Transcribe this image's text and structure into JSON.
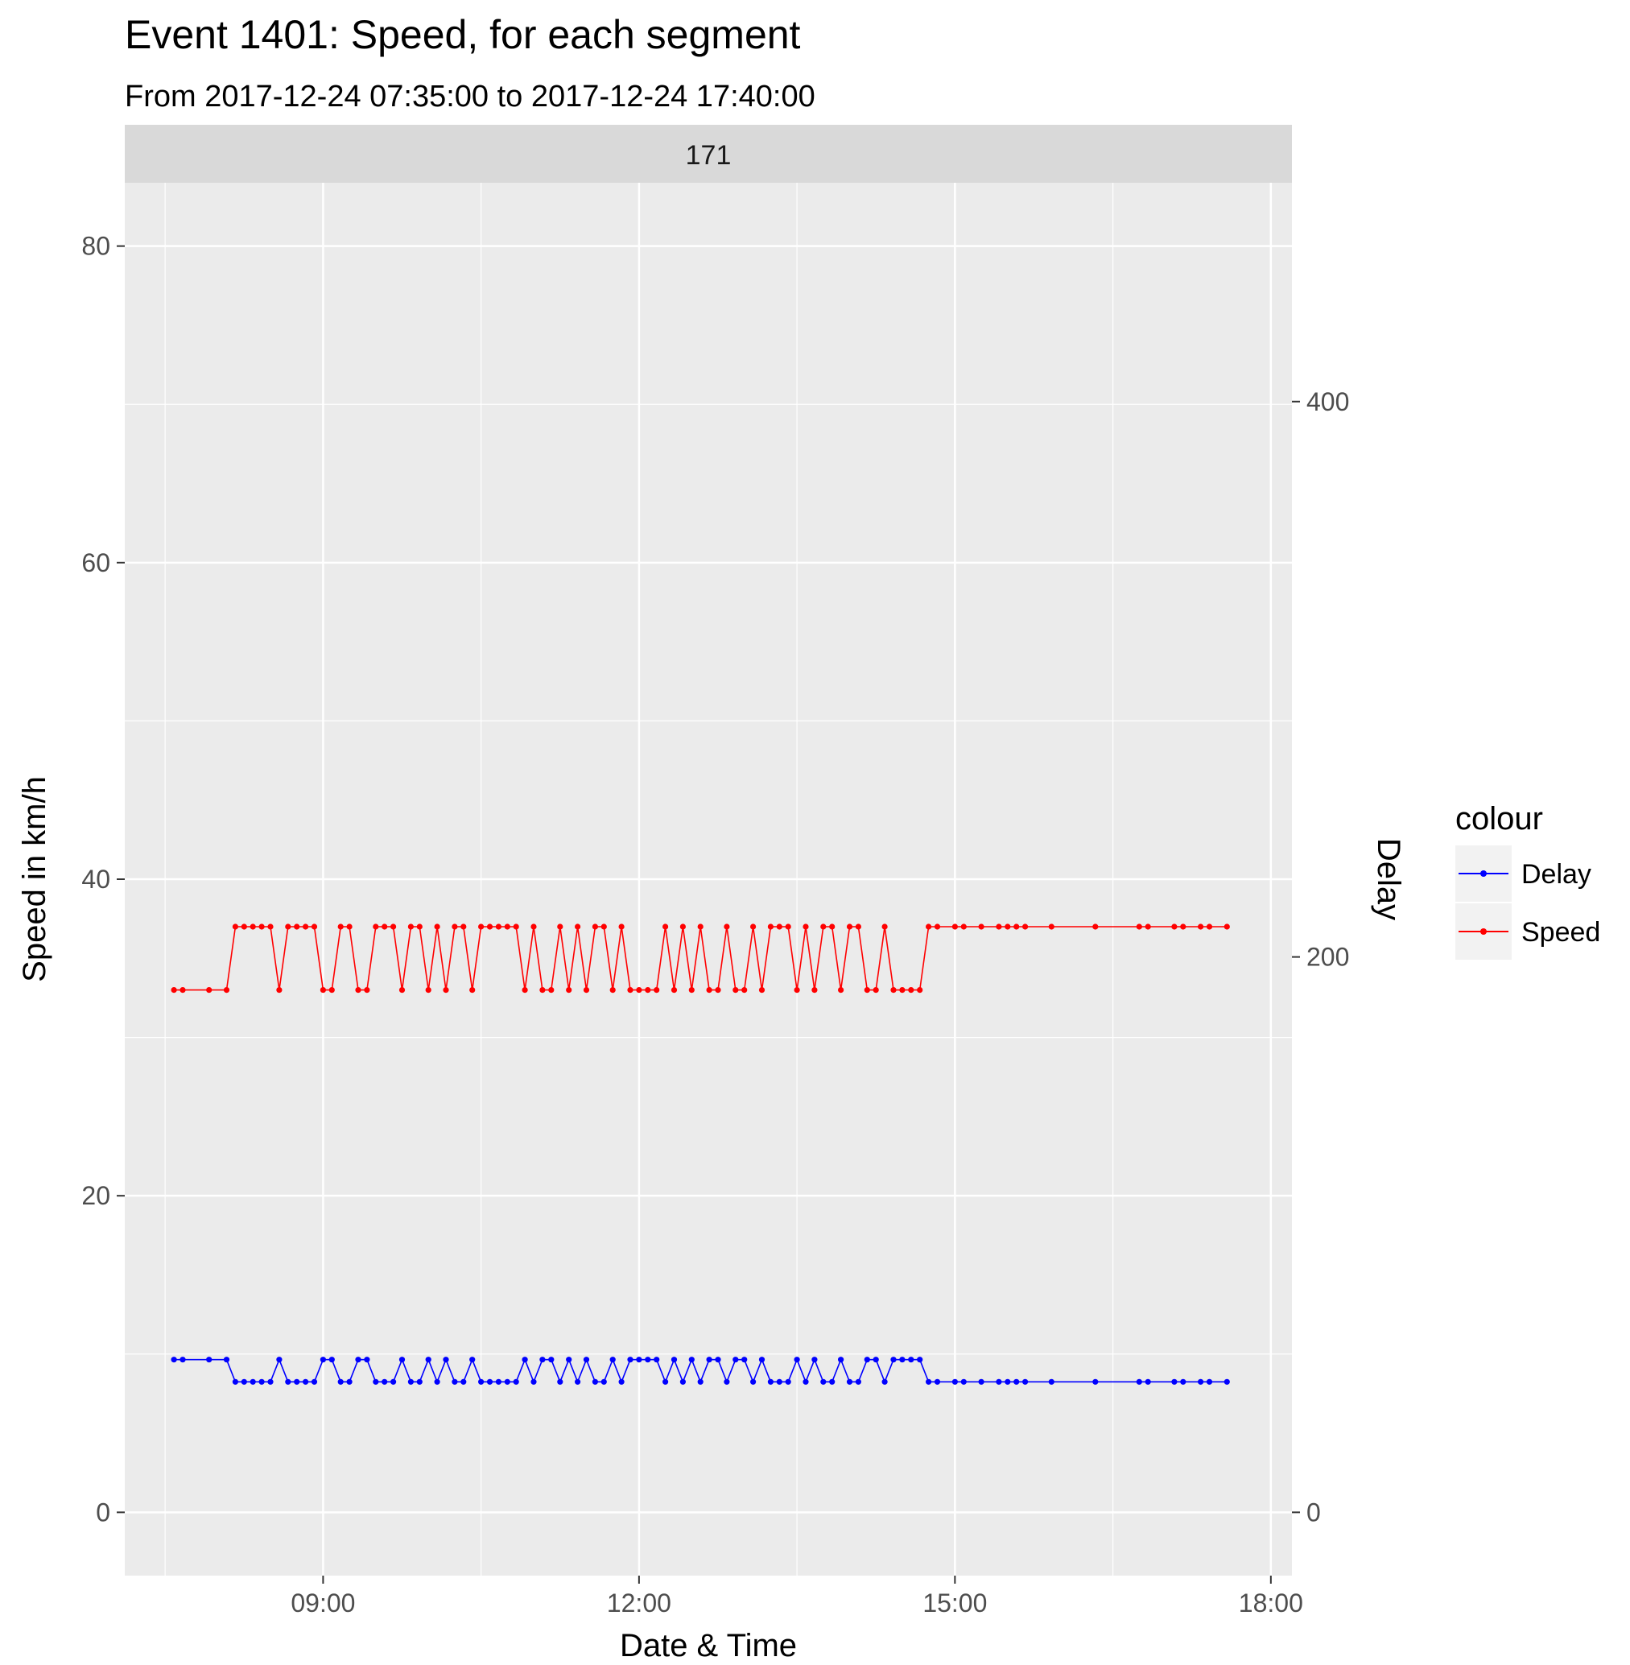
{
  "chart_data": {
    "type": "line",
    "title": "Event 1401: Speed, for each segment",
    "subtitle": "From 2017-12-24 07:35:00 to 2017-12-24 17:40:00",
    "facet_label": "171",
    "xlabel": "Date & Time",
    "ylabel": "Speed in km/h",
    "y2label": "Delay",
    "x_ticks": [
      "09:00",
      "12:00",
      "15:00",
      "18:00"
    ],
    "y_ticks": [
      "0",
      "20",
      "40",
      "60",
      "80"
    ],
    "y2_ticks": [
      "0",
      "200",
      "400"
    ],
    "xlim": [
      "2017-12-24 07:07",
      "2017-12-24 18:12"
    ],
    "ylim": [
      -4,
      84
    ],
    "y2_ratio": 5.7,
    "grid": true,
    "legend": {
      "title": "colour",
      "placement": "right",
      "entries": [
        {
          "label": "Delay",
          "color": "#0000ff"
        },
        {
          "label": "Speed",
          "color": "#ff0000"
        }
      ]
    },
    "series": [
      {
        "name": "Speed",
        "color": "#ff0000",
        "x": [
          "2017-12-24 07:35",
          "2017-12-24 07:40",
          "2017-12-24 07:55",
          "2017-12-24 08:05",
          "2017-12-24 08:10",
          "2017-12-24 08:15",
          "2017-12-24 08:20",
          "2017-12-24 08:25",
          "2017-12-24 08:30",
          "2017-12-24 08:35",
          "2017-12-24 08:40",
          "2017-12-24 08:45",
          "2017-12-24 08:50",
          "2017-12-24 08:55",
          "2017-12-24 09:00",
          "2017-12-24 09:05",
          "2017-12-24 09:10",
          "2017-12-24 09:15",
          "2017-12-24 09:20",
          "2017-12-24 09:25",
          "2017-12-24 09:30",
          "2017-12-24 09:35",
          "2017-12-24 09:40",
          "2017-12-24 09:45",
          "2017-12-24 09:50",
          "2017-12-24 09:55",
          "2017-12-24 10:00",
          "2017-12-24 10:05",
          "2017-12-24 10:10",
          "2017-12-24 10:15",
          "2017-12-24 10:20",
          "2017-12-24 10:25",
          "2017-12-24 10:30",
          "2017-12-24 10:35",
          "2017-12-24 10:40",
          "2017-12-24 10:45",
          "2017-12-24 10:50",
          "2017-12-24 10:55",
          "2017-12-24 11:00",
          "2017-12-24 11:05",
          "2017-12-24 11:10",
          "2017-12-24 11:15",
          "2017-12-24 11:20",
          "2017-12-24 11:25",
          "2017-12-24 11:30",
          "2017-12-24 11:35",
          "2017-12-24 11:40",
          "2017-12-24 11:45",
          "2017-12-24 11:50",
          "2017-12-24 11:55",
          "2017-12-24 12:00",
          "2017-12-24 12:05",
          "2017-12-24 12:10",
          "2017-12-24 12:15",
          "2017-12-24 12:20",
          "2017-12-24 12:25",
          "2017-12-24 12:30",
          "2017-12-24 12:35",
          "2017-12-24 12:40",
          "2017-12-24 12:45",
          "2017-12-24 12:50",
          "2017-12-24 12:55",
          "2017-12-24 13:00",
          "2017-12-24 13:05",
          "2017-12-24 13:10",
          "2017-12-24 13:15",
          "2017-12-24 13:20",
          "2017-12-24 13:25",
          "2017-12-24 13:30",
          "2017-12-24 13:35",
          "2017-12-24 13:40",
          "2017-12-24 13:45",
          "2017-12-24 13:50",
          "2017-12-24 13:55",
          "2017-12-24 14:00",
          "2017-12-24 14:05",
          "2017-12-24 14:10",
          "2017-12-24 14:15",
          "2017-12-24 14:20",
          "2017-12-24 14:25",
          "2017-12-24 14:30",
          "2017-12-24 14:35",
          "2017-12-24 14:40",
          "2017-12-24 14:45",
          "2017-12-24 14:50",
          "2017-12-24 15:00",
          "2017-12-24 15:05",
          "2017-12-24 15:15",
          "2017-12-24 15:25",
          "2017-12-24 15:30",
          "2017-12-24 15:35",
          "2017-12-24 15:40",
          "2017-12-24 15:55",
          "2017-12-24 16:20",
          "2017-12-24 16:45",
          "2017-12-24 16:50",
          "2017-12-24 17:05",
          "2017-12-24 17:10",
          "2017-12-24 17:20",
          "2017-12-24 17:25",
          "2017-12-24 17:35"
        ],
        "values": [
          33,
          33,
          33,
          33,
          37,
          37,
          37,
          37,
          37,
          33,
          37,
          37,
          37,
          37,
          33,
          33,
          37,
          37,
          33,
          33,
          37,
          37,
          37,
          33,
          37,
          37,
          33,
          37,
          33,
          37,
          37,
          33,
          37,
          37,
          37,
          37,
          37,
          33,
          37,
          33,
          33,
          37,
          33,
          37,
          33,
          37,
          37,
          33,
          37,
          33,
          33,
          33,
          33,
          37,
          33,
          37,
          33,
          37,
          33,
          33,
          37,
          33,
          33,
          37,
          33,
          37,
          37,
          37,
          33,
          37,
          33,
          37,
          37,
          33,
          37,
          37,
          33,
          33,
          37,
          33,
          33,
          33,
          33,
          37,
          37,
          37,
          37,
          37,
          37,
          37,
          37,
          37,
          37,
          37,
          37,
          37,
          37,
          37,
          37,
          37,
          37
        ]
      },
      {
        "name": "Delay",
        "color": "#0000ff",
        "x": [
          "2017-12-24 07:35",
          "2017-12-24 07:40",
          "2017-12-24 07:55",
          "2017-12-24 08:05",
          "2017-12-24 08:10",
          "2017-12-24 08:15",
          "2017-12-24 08:20",
          "2017-12-24 08:25",
          "2017-12-24 08:30",
          "2017-12-24 08:35",
          "2017-12-24 08:40",
          "2017-12-24 08:45",
          "2017-12-24 08:50",
          "2017-12-24 08:55",
          "2017-12-24 09:00",
          "2017-12-24 09:05",
          "2017-12-24 09:10",
          "2017-12-24 09:15",
          "2017-12-24 09:20",
          "2017-12-24 09:25",
          "2017-12-24 09:30",
          "2017-12-24 09:35",
          "2017-12-24 09:40",
          "2017-12-24 09:45",
          "2017-12-24 09:50",
          "2017-12-24 09:55",
          "2017-12-24 10:00",
          "2017-12-24 10:05",
          "2017-12-24 10:10",
          "2017-12-24 10:15",
          "2017-12-24 10:20",
          "2017-12-24 10:25",
          "2017-12-24 10:30",
          "2017-12-24 10:35",
          "2017-12-24 10:40",
          "2017-12-24 10:45",
          "2017-12-24 10:50",
          "2017-12-24 10:55",
          "2017-12-24 11:00",
          "2017-12-24 11:05",
          "2017-12-24 11:10",
          "2017-12-24 11:15",
          "2017-12-24 11:20",
          "2017-12-24 11:25",
          "2017-12-24 11:30",
          "2017-12-24 11:35",
          "2017-12-24 11:40",
          "2017-12-24 11:45",
          "2017-12-24 11:50",
          "2017-12-24 11:55",
          "2017-12-24 12:00",
          "2017-12-24 12:05",
          "2017-12-24 12:10",
          "2017-12-24 12:15",
          "2017-12-24 12:20",
          "2017-12-24 12:25",
          "2017-12-24 12:30",
          "2017-12-24 12:35",
          "2017-12-24 12:40",
          "2017-12-24 12:45",
          "2017-12-24 12:50",
          "2017-12-24 12:55",
          "2017-12-24 13:00",
          "2017-12-24 13:05",
          "2017-12-24 13:10",
          "2017-12-24 13:15",
          "2017-12-24 13:20",
          "2017-12-24 13:25",
          "2017-12-24 13:30",
          "2017-12-24 13:35",
          "2017-12-24 13:40",
          "2017-12-24 13:45",
          "2017-12-24 13:50",
          "2017-12-24 13:55",
          "2017-12-24 14:00",
          "2017-12-24 14:05",
          "2017-12-24 14:10",
          "2017-12-24 14:15",
          "2017-12-24 14:20",
          "2017-12-24 14:25",
          "2017-12-24 14:30",
          "2017-12-24 14:35",
          "2017-12-24 14:40",
          "2017-12-24 14:45",
          "2017-12-24 14:50",
          "2017-12-24 15:00",
          "2017-12-24 15:05",
          "2017-12-24 15:15",
          "2017-12-24 15:25",
          "2017-12-24 15:30",
          "2017-12-24 15:35",
          "2017-12-24 15:40",
          "2017-12-24 15:55",
          "2017-12-24 16:20",
          "2017-12-24 16:45",
          "2017-12-24 16:50",
          "2017-12-24 17:05",
          "2017-12-24 17:10",
          "2017-12-24 17:20",
          "2017-12-24 17:25",
          "2017-12-24 17:35"
        ],
        "values": [
          55,
          55,
          55,
          55,
          47,
          47,
          47,
          47,
          47,
          55,
          47,
          47,
          47,
          47,
          55,
          55,
          47,
          47,
          55,
          55,
          47,
          47,
          47,
          55,
          47,
          47,
          55,
          47,
          55,
          47,
          47,
          55,
          47,
          47,
          47,
          47,
          47,
          55,
          47,
          55,
          55,
          47,
          55,
          47,
          55,
          47,
          47,
          55,
          47,
          55,
          55,
          55,
          55,
          47,
          55,
          47,
          55,
          47,
          55,
          55,
          47,
          55,
          55,
          47,
          55,
          47,
          47,
          47,
          55,
          47,
          55,
          47,
          47,
          55,
          47,
          47,
          55,
          55,
          47,
          55,
          55,
          55,
          55,
          47,
          47,
          47,
          47,
          47,
          47,
          47,
          47,
          47,
          47,
          47,
          47,
          47,
          47,
          47,
          47,
          47,
          47
        ]
      }
    ]
  }
}
